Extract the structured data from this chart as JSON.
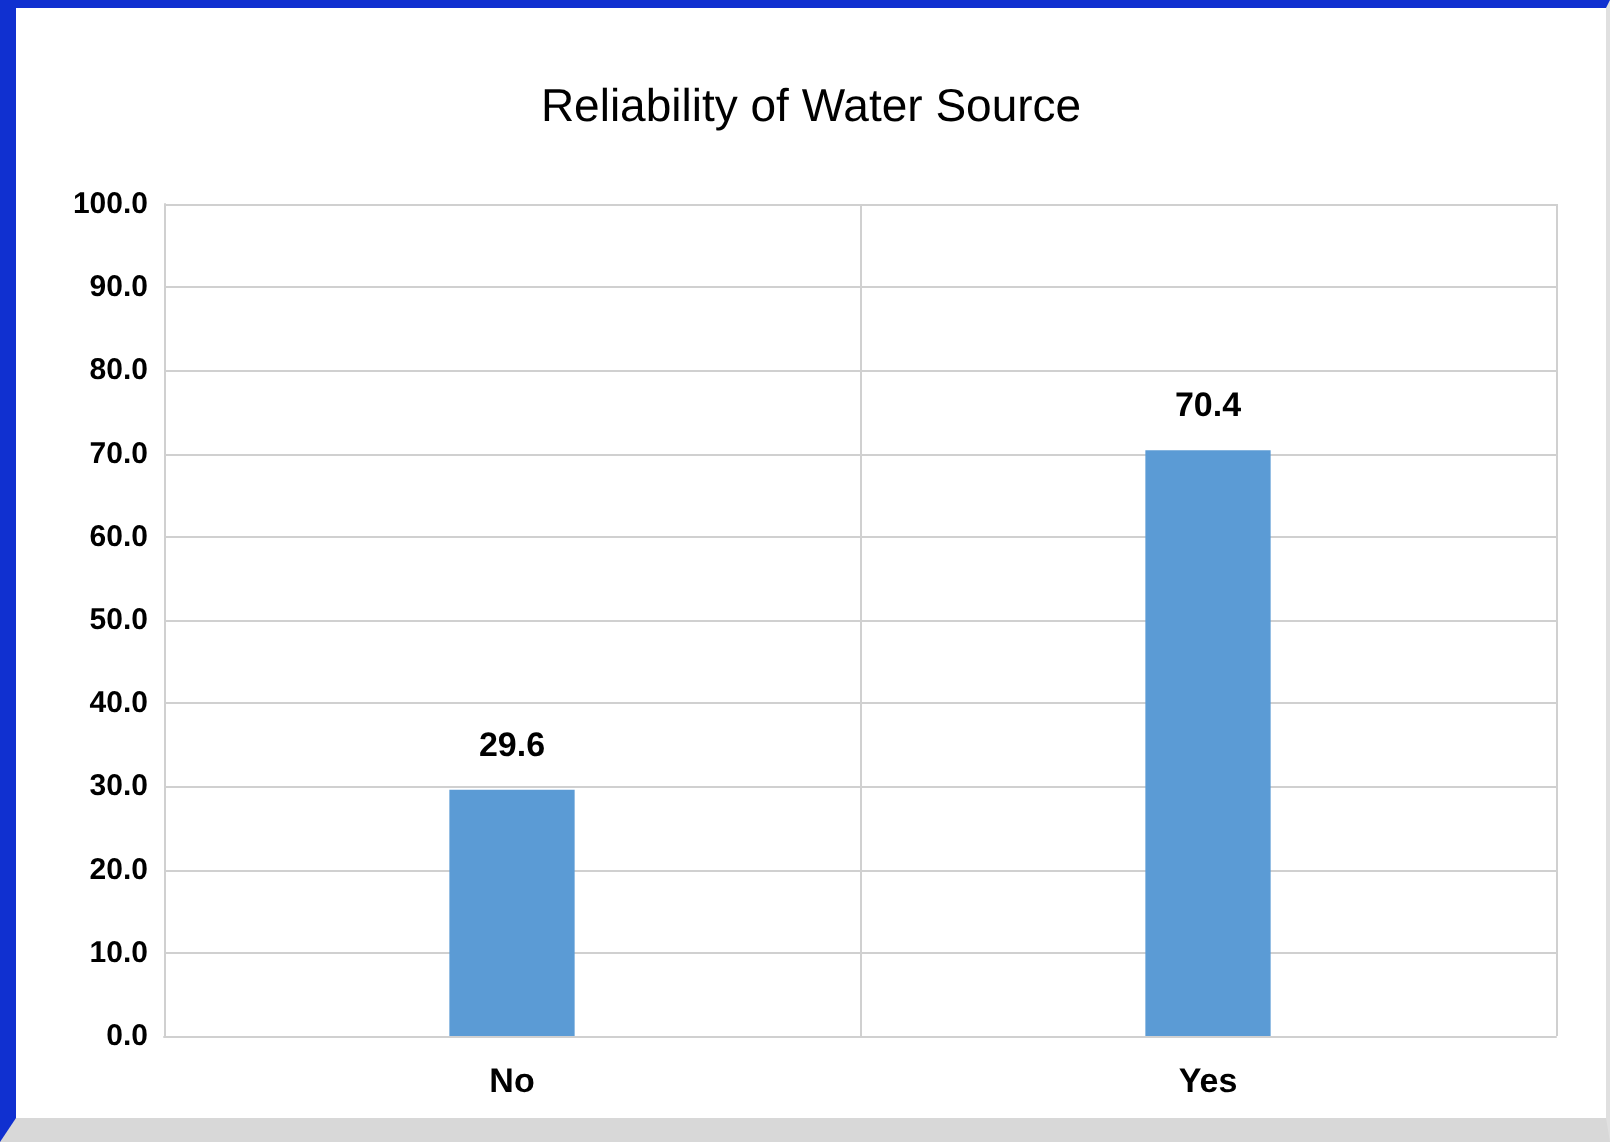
{
  "chart_data": {
    "type": "bar",
    "title": "Reliability of Water Source",
    "categories": [
      "No",
      "Yes"
    ],
    "values": [
      29.6,
      70.4
    ],
    "color": "#5b9bd5",
    "ylim": [
      0,
      100
    ],
    "yticks": [
      {
        "value": 0,
        "label": "0.0"
      },
      {
        "value": 10,
        "label": "10.0"
      },
      {
        "value": 20,
        "label": "20.0"
      },
      {
        "value": 30,
        "label": "30.0"
      },
      {
        "value": 40,
        "label": "40.0"
      },
      {
        "value": 50,
        "label": "50.0"
      },
      {
        "value": 60,
        "label": "60.0"
      },
      {
        "value": 70,
        "label": "70.0"
      },
      {
        "value": 80,
        "label": "80.0"
      },
      {
        "value": 90,
        "label": "90.0"
      },
      {
        "value": 100,
        "label": "100.0"
      }
    ],
    "grid": true,
    "data_labels": true
  }
}
